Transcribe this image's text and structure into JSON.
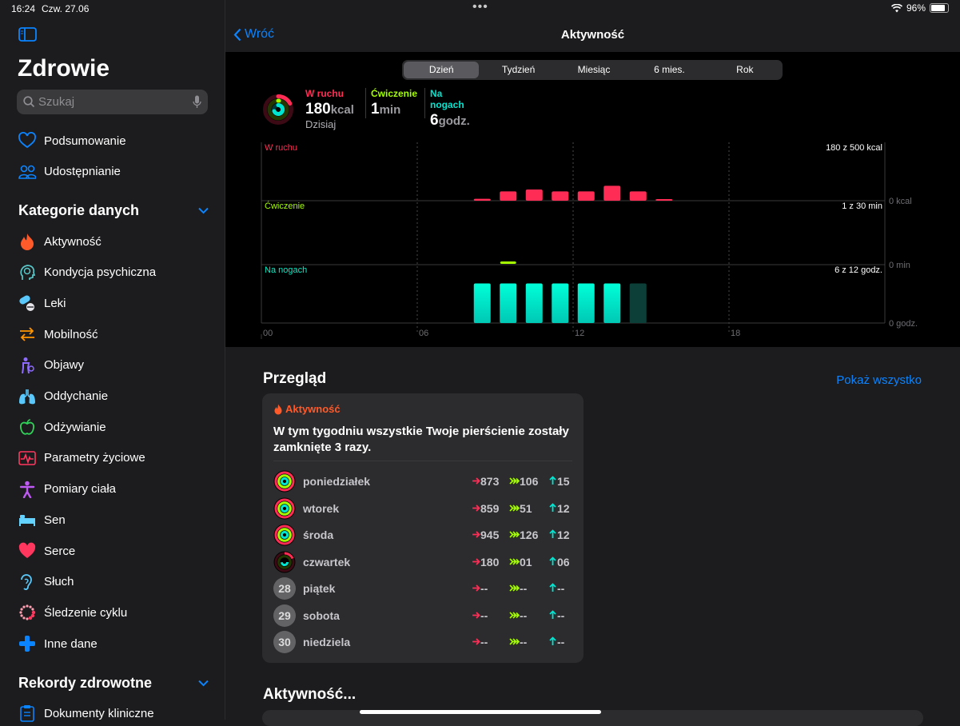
{
  "status": {
    "time": "16:24",
    "date": "Czw. 27.06",
    "battery": "96%",
    "battery_level": 0.96
  },
  "sidebar": {
    "title": "Zdrowie",
    "search_placeholder": "Szukaj",
    "top_items": [
      {
        "label": "Podsumowanie",
        "icon": "heart-outline-icon",
        "color": "#0a84ff"
      },
      {
        "label": "Udostępnianie",
        "icon": "people-icon",
        "color": "#0a84ff"
      }
    ],
    "categories_header": "Kategorie danych",
    "categories": [
      {
        "label": "Aktywność",
        "icon": "flame-icon",
        "color": "#ff5a2a"
      },
      {
        "label": "Kondycja psychiczna",
        "icon": "brain-head-icon",
        "color": "#5ac8c8"
      },
      {
        "label": "Leki",
        "icon": "pills-icon",
        "color": "#5ac8fa"
      },
      {
        "label": "Mobilność",
        "icon": "arrows-icon",
        "color": "#ff9500"
      },
      {
        "label": "Objawy",
        "icon": "person-symptoms-icon",
        "color": "#8e6cff"
      },
      {
        "label": "Oddychanie",
        "icon": "lungs-icon",
        "color": "#5ac8fa"
      },
      {
        "label": "Odżywianie",
        "icon": "apple-icon",
        "color": "#30d158"
      },
      {
        "label": "Parametry życiowe",
        "icon": "vitals-icon",
        "color": "#ff375f"
      },
      {
        "label": "Pomiary ciała",
        "icon": "figure-icon",
        "color": "#bf5af2"
      },
      {
        "label": "Sen",
        "icon": "bed-icon",
        "color": "#64d2ff"
      },
      {
        "label": "Serce",
        "icon": "heart-icon",
        "color": "#ff375f"
      },
      {
        "label": "Słuch",
        "icon": "ear-icon",
        "color": "#5ac8fa"
      },
      {
        "label": "Śledzenie cyklu",
        "icon": "cycle-icon",
        "color": "#ff375f"
      },
      {
        "label": "Inne dane",
        "icon": "plus-icon",
        "color": "#0a84ff"
      }
    ],
    "records_header": "Rekordy zdrowotne",
    "records": [
      {
        "label": "Dokumenty kliniczne",
        "icon": "clipboard-icon",
        "color": "#0a84ff"
      }
    ]
  },
  "main": {
    "back_label": "Wróć",
    "title": "Aktywność",
    "tabs": [
      "Dzień",
      "Tydzień",
      "Miesiąc",
      "6 mies.",
      "Rok"
    ],
    "active_tab": 0,
    "summary": {
      "move": {
        "label": "W ruchu",
        "value": "180",
        "unit": "kcal",
        "sub": "Dzisiaj",
        "color": "#ff2d55"
      },
      "exercise": {
        "label": "Ćwiczenie",
        "value": "1",
        "unit": "min",
        "color": "#a6ff00"
      },
      "stand": {
        "label": "Na nogach",
        "value": "6",
        "unit": "godz.",
        "color": "#00e5d0"
      }
    },
    "overview_title": "Przegląd",
    "show_all": "Pokaż wszystko",
    "card": {
      "header": "Aktywność",
      "message": "W tym tygodniu wszystkie Twoje pierścienie zostały zamknięte 3 razy.",
      "rows": [
        {
          "day": "poniedziałek",
          "ring": "full",
          "move": "873",
          "exercise": "106",
          "stand": "15"
        },
        {
          "day": "wtorek",
          "ring": "full",
          "move": "859",
          "exercise": "51",
          "stand": "12"
        },
        {
          "day": "środa",
          "ring": "full",
          "move": "945",
          "exercise": "126",
          "stand": "12"
        },
        {
          "day": "czwartek",
          "ring": "partial",
          "move": "180",
          "exercise": "01",
          "stand": "06"
        },
        {
          "day": "piątek",
          "ring": "28",
          "move": "--",
          "exercise": "--",
          "stand": "--"
        },
        {
          "day": "sobota",
          "ring": "29",
          "move": "--",
          "exercise": "--",
          "stand": "--"
        },
        {
          "day": "niedziela",
          "ring": "30",
          "move": "--",
          "exercise": "--",
          "stand": "--"
        }
      ]
    },
    "next_section_title": "Aktywność..."
  },
  "chart_data": {
    "type": "bar",
    "x_ticks": [
      "00",
      "06",
      "12",
      "18"
    ],
    "x_range_hours": [
      0,
      24
    ],
    "panels": [
      {
        "name": "W ruchu",
        "color": "#ff2d55",
        "goal_text": "180 z 500 kcal",
        "zero_label": "0 kcal",
        "hours": [
          8,
          9,
          10,
          11,
          12,
          13,
          14,
          15
        ],
        "values": [
          1,
          5,
          6,
          5,
          5,
          8,
          5,
          0.3
        ],
        "ymax": 30
      },
      {
        "name": "Ćwiczenie",
        "color": "#a6ff00",
        "goal_text": "1 z 30 min",
        "zero_label": "0 min",
        "hours": [
          9
        ],
        "values": [
          1
        ],
        "ymax": 30
      },
      {
        "name": "Na nogach",
        "color": "#00f0c8",
        "goal_text": "6 z 12 godz.",
        "zero_label": "0 godz.",
        "hours": [
          8,
          9,
          10,
          11,
          12,
          13,
          14
        ],
        "values": [
          1,
          1,
          1,
          1,
          1,
          1,
          1
        ],
        "ymax": 1.05,
        "completed": [
          true,
          true,
          true,
          true,
          true,
          true,
          false
        ]
      }
    ]
  }
}
